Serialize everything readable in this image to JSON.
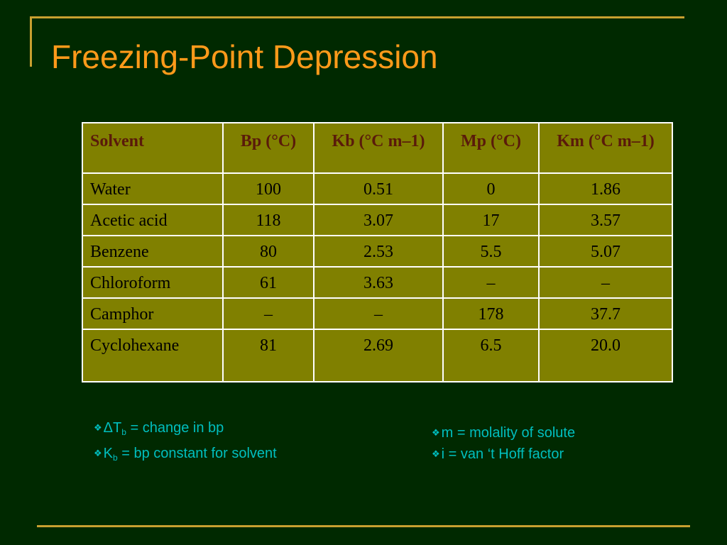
{
  "slide": {
    "title": "Freezing-Point Depression",
    "colors": {
      "background": "#002900",
      "frame": "#c8a030",
      "title": "#ff9a1a",
      "table_fill": "#808000",
      "header_text": "#5a1a0a",
      "notes_text": "#00bfbf"
    }
  },
  "table": {
    "headers": [
      "Solvent",
      "Bp (°C)",
      "Kb (°C m–1)",
      "Mp (°C)",
      "Km (°C m–1)"
    ],
    "rows": [
      [
        "Water",
        "100",
        "0.51",
        "0",
        "1.86"
      ],
      [
        "Acetic acid",
        "118",
        "3.07",
        "17",
        "3.57"
      ],
      [
        "Benzene",
        "80",
        "2.53",
        "5.5",
        "5.07"
      ],
      [
        "Chloroform",
        "61",
        "3.63",
        "–",
        "–"
      ],
      [
        "Camphor",
        "–",
        "–",
        "178",
        "37.7"
      ],
      [
        "Cyclohexane",
        "81",
        "2.69",
        "6.5",
        "20.0"
      ]
    ]
  },
  "notes_left": [
    {
      "bullet": "❖",
      "prefix": "ΔT",
      "sub": "b",
      "rest": " = change in bp"
    },
    {
      "bullet": "❖",
      "prefix": "K",
      "sub": "b",
      "rest": " = bp constant for solvent"
    }
  ],
  "notes_right": [
    {
      "bullet": "❖",
      "text": "m = molality of solute"
    },
    {
      "bullet": "❖",
      "text": "i = van ‘t Hoff factor"
    }
  ],
  "icons": {
    "bullet": "diamond-bullet-icon"
  }
}
